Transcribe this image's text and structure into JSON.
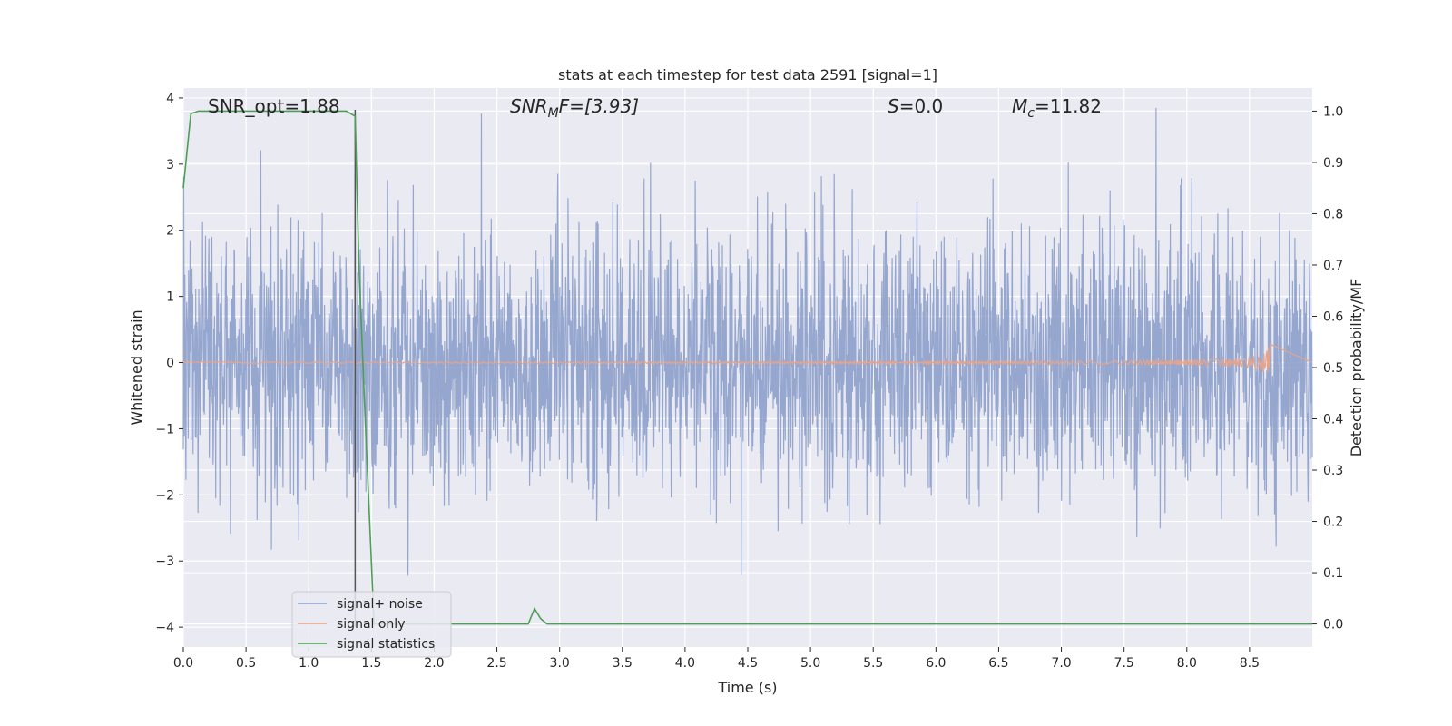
{
  "chart_data": {
    "type": "line",
    "title": "stats at each timestep for test data 2591 [signal=1]",
    "xlabel": "Time (s)",
    "ylabel_left": "Whitened strain",
    "ylabel_right": "Detection probability/MF",
    "xlim": [
      0.0,
      9.0
    ],
    "ylim_left": [
      -4.3,
      4.15
    ],
    "ylim_right": [
      -0.045,
      1.045
    ],
    "x_ticks": [
      "0.0",
      "0.5",
      "1.0",
      "1.5",
      "2.0",
      "2.5",
      "3.0",
      "3.5",
      "4.0",
      "4.5",
      "5.0",
      "5.5",
      "6.0",
      "6.5",
      "7.0",
      "7.5",
      "8.0",
      "8.5"
    ],
    "y_ticks_left": [
      "−4",
      "−3",
      "−2",
      "−1",
      "0",
      "1",
      "2",
      "3",
      "4"
    ],
    "y_ticks_right": [
      "0.0",
      "0.1",
      "0.2",
      "0.3",
      "0.4",
      "0.5",
      "0.6",
      "0.7",
      "0.8",
      "0.9",
      "1.0"
    ],
    "grid": true,
    "legend_position": "lower-left",
    "annotations": {
      "snr_opt": "SNR_opt=1.88",
      "snr_mf_base": "SNR",
      "snr_mf_sub": "M",
      "snr_mf_rest": "F=[3.93]",
      "s_base": "S",
      "s_rest": "=0.0",
      "mc_base": "M",
      "mc_sub": "c",
      "mc_rest": "=11.82"
    },
    "series": [
      {
        "name": "signal+ noise",
        "color": "#8da0cb",
        "description_axis": "left",
        "amplitude_range": [
          -4.0,
          3.85
        ]
      },
      {
        "name": "signal only",
        "color": "#e5a48b",
        "axis": "left",
        "chirp_end_time": 8.67,
        "peak_amplitude": 0.35
      },
      {
        "name": "signal statistics",
        "color": "#4c9f55",
        "axis": "right",
        "x": [
          0.0,
          0.06,
          0.12,
          0.2,
          0.5,
          1.0,
          1.3,
          1.37,
          1.4,
          1.45,
          1.5,
          1.52,
          1.6,
          2.0,
          2.5,
          2.75,
          2.8,
          2.85,
          2.9,
          2.95,
          3.5,
          5.0,
          7.0,
          9.0
        ],
        "values": [
          0.85,
          0.995,
          1.0,
          1.0,
          1.0,
          1.0,
          1.0,
          0.99,
          0.7,
          0.4,
          0.12,
          0.0,
          0.0,
          0.0,
          0.0,
          0.0,
          0.03,
          0.01,
          0.0,
          0.0,
          0.0,
          0.0,
          0.0,
          0.0
        ]
      }
    ],
    "vertical_marker_x": 1.37
  }
}
